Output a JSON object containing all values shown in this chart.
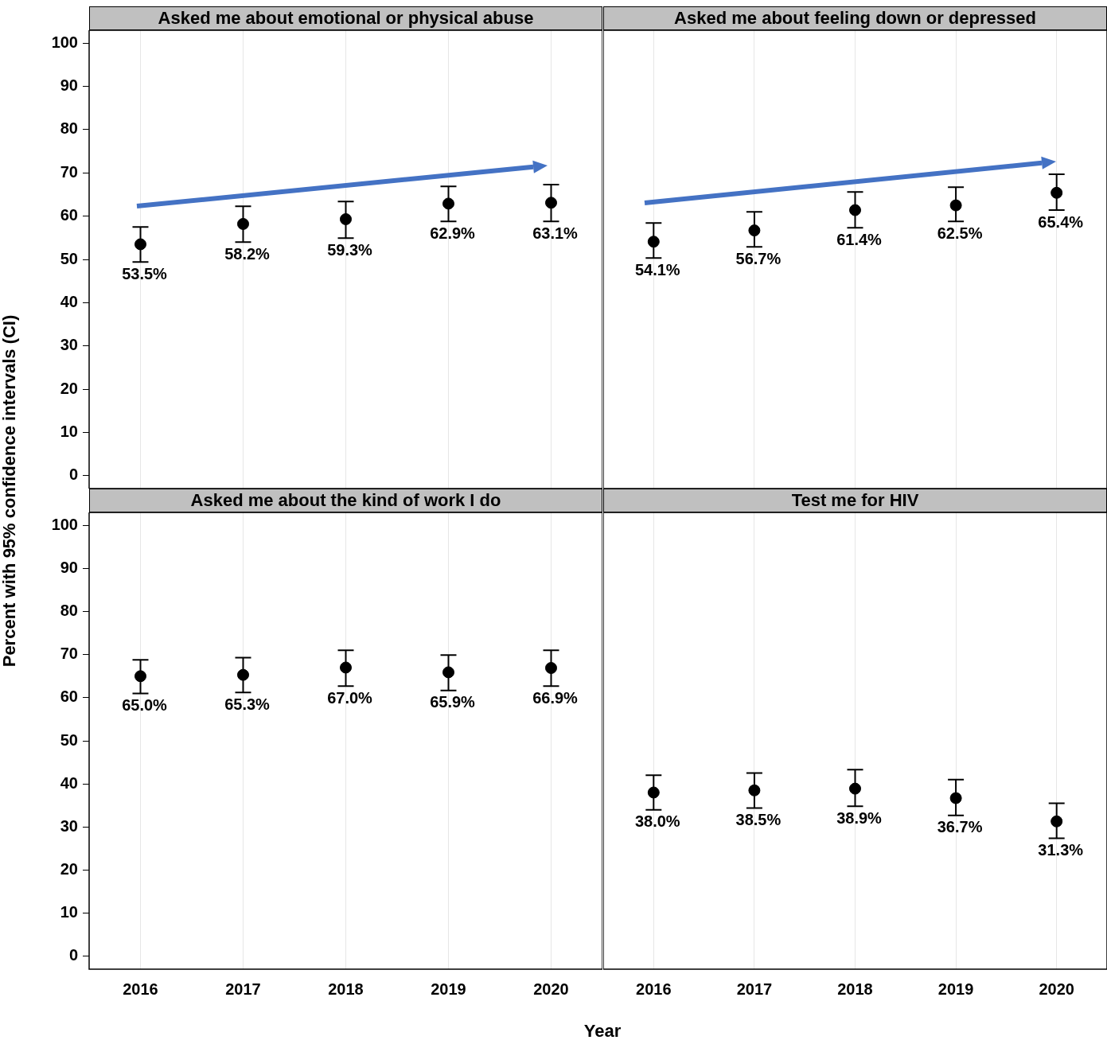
{
  "chart_data": [
    {
      "type": "scatter",
      "title": "Asked me about emotional or physical abuse",
      "ylabel": "Percent with 95% confidence intervals (CI)",
      "categories": [
        "2016",
        "2017",
        "2018",
        "2019",
        "2020"
      ],
      "values": [
        53.5,
        58.2,
        59.3,
        62.9,
        63.1
      ],
      "errors": [
        [
          49.4,
          57.5
        ],
        [
          54.0,
          62.3
        ],
        [
          54.9,
          63.4
        ],
        [
          58.8,
          66.9
        ],
        [
          58.8,
          67.3
        ]
      ],
      "value_labels": [
        "53.5%",
        "58.2%",
        "59.3%",
        "62.9%",
        "63.1%"
      ],
      "color": "#000000",
      "marker": "circle",
      "grid": "x",
      "ylim": [
        -3,
        103
      ],
      "yticks": [
        0,
        10,
        20,
        30,
        40,
        50,
        60,
        70,
        80,
        90,
        100
      ],
      "tick_labels": "y"
    },
    {
      "type": "scatter",
      "title": "Asked me about feeling down or depressed",
      "categories": [
        "2016",
        "2017",
        "2018",
        "2019",
        "2020"
      ],
      "values": [
        54.1,
        56.7,
        61.4,
        62.5,
        65.4
      ],
      "errors": [
        [
          50.3,
          58.4
        ],
        [
          52.9,
          61.0
        ],
        [
          57.3,
          65.6
        ],
        [
          58.8,
          66.7
        ],
        [
          61.4,
          69.7
        ]
      ],
      "value_labels": [
        "54.1%",
        "56.7%",
        "61.4%",
        "62.5%",
        "65.4%"
      ],
      "color": "#000000",
      "marker": "circle",
      "grid": "x",
      "ylim": [
        -3,
        103
      ],
      "yticks": [
        0,
        10,
        20,
        30,
        40,
        50,
        60,
        70,
        80,
        90,
        100
      ],
      "tick_labels": false
    },
    {
      "type": "scatter",
      "title": "Asked me about the kind of work I do",
      "xlabel": "Year",
      "categories": [
        "2016",
        "2017",
        "2018",
        "2019",
        "2020"
      ],
      "values": [
        65.0,
        65.3,
        67.0,
        65.9,
        66.9
      ],
      "errors": [
        [
          61.0,
          68.8
        ],
        [
          61.2,
          69.3
        ],
        [
          62.7,
          71.0
        ],
        [
          61.7,
          69.9
        ],
        [
          62.7,
          71.0
        ]
      ],
      "value_labels": [
        "65.0%",
        "65.3%",
        "67.0%",
        "65.9%",
        "66.9%"
      ],
      "color": "#000000",
      "marker": "circle",
      "grid": "x",
      "ylim": [
        -3,
        103
      ],
      "yticks": [
        0,
        10,
        20,
        30,
        40,
        50,
        60,
        70,
        80,
        90,
        100
      ]
    },
    {
      "type": "scatter",
      "title": "Test me for HIV",
      "categories": [
        "2016",
        "2017",
        "2018",
        "2019",
        "2020"
      ],
      "values": [
        38.0,
        38.5,
        38.9,
        36.7,
        31.3
      ],
      "errors": [
        [
          34.0,
          42.0
        ],
        [
          34.4,
          42.5
        ],
        [
          34.8,
          43.3
        ],
        [
          32.7,
          41.0
        ],
        [
          27.4,
          35.5
        ]
      ],
      "value_labels": [
        "38.0%",
        "38.5%",
        "38.9%",
        "36.7%",
        "31.3%"
      ],
      "color": "#000000",
      "marker": "circle",
      "grid": "x",
      "ylim": [
        -3,
        103
      ],
      "yticks": [
        0,
        10,
        20,
        30,
        40,
        50,
        60,
        70,
        80,
        90,
        100
      ],
      "tick_labels": "x"
    }
  ]
}
